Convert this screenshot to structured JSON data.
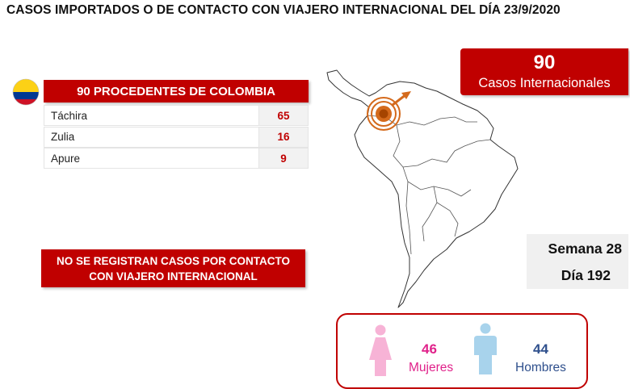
{
  "title": "CASOS IMPORTADOS O DE CONTACTO CON VIAJERO INTERNACIONAL DEL DÍA  23/9/2020",
  "origin": {
    "header": "90 PROCEDENTES DE COLOMBIA",
    "flag_icon": "colombia-flag-icon",
    "flag_colors": [
      "#fcd116",
      "#003893",
      "#ce1126"
    ],
    "rows": [
      {
        "state": "Táchira",
        "count": "65"
      },
      {
        "state": "Zulia",
        "count": "16"
      },
      {
        "state": "Apure",
        "count": "9"
      }
    ]
  },
  "notice": {
    "line1": "NO SE REGISTRAN CASOS POR CONTACTO",
    "line2": "CON VIAJERO INTERNACIONAL"
  },
  "international": {
    "count": "90",
    "label": "Casos Internacionales"
  },
  "period": {
    "week": "Semana 28",
    "day": "Día 192"
  },
  "gender": {
    "female_count": "46",
    "female_label": "Mujeres",
    "female_color": "#e0218a",
    "male_count": "44",
    "male_label": "Hombres",
    "male_color": "#2e4f8c"
  },
  "colors": {
    "accent": "#c00000",
    "marker": "#d46a1c"
  }
}
